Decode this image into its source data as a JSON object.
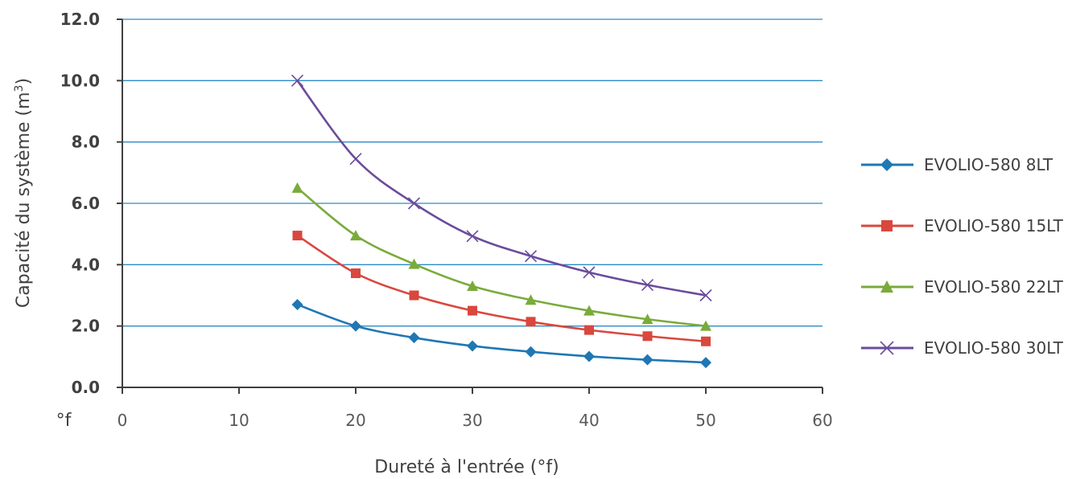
{
  "chart_data": {
    "type": "line",
    "title": "",
    "xlabel": "Dureté à l'entrée (°f)",
    "ylabel": "Capacité du système (m",
    "ylabel_sup": "3",
    "ylabel_suffix": ")",
    "x_unit_label": "°f",
    "xlim": [
      0,
      60
    ],
    "ylim": [
      0,
      12
    ],
    "x_ticks": [
      "0",
      "10",
      "20",
      "30",
      "40",
      "50",
      "60"
    ],
    "y_ticks": [
      "0.0",
      "2.0",
      "4.0",
      "6.0",
      "8.0",
      "10.0",
      "12.0"
    ],
    "grid": "horizontal",
    "legend_position": "right",
    "x": [
      15,
      20,
      25,
      30,
      35,
      40,
      45,
      50
    ],
    "series": [
      {
        "name": "EVOLIO-580 8LT",
        "color": "#1f77b4",
        "marker": "diamond",
        "values": [
          2.7,
          2.0,
          1.62,
          1.35,
          1.16,
          1.01,
          0.9,
          0.81
        ]
      },
      {
        "name": "EVOLIO-580 15LT",
        "color": "#d9473d",
        "marker": "square",
        "values": [
          4.95,
          3.72,
          3.0,
          2.5,
          2.14,
          1.87,
          1.67,
          1.5
        ]
      },
      {
        "name": "EVOLIO-580 22LT",
        "color": "#7aab3a",
        "marker": "triangle",
        "values": [
          6.5,
          4.95,
          4.02,
          3.3,
          2.85,
          2.5,
          2.22,
          2.0
        ]
      },
      {
        "name": "EVOLIO-580 30LT",
        "color": "#6a4c9c",
        "marker": "x",
        "values": [
          10.0,
          7.45,
          6.0,
          4.93,
          4.28,
          3.75,
          3.34,
          3.0
        ]
      }
    ]
  }
}
